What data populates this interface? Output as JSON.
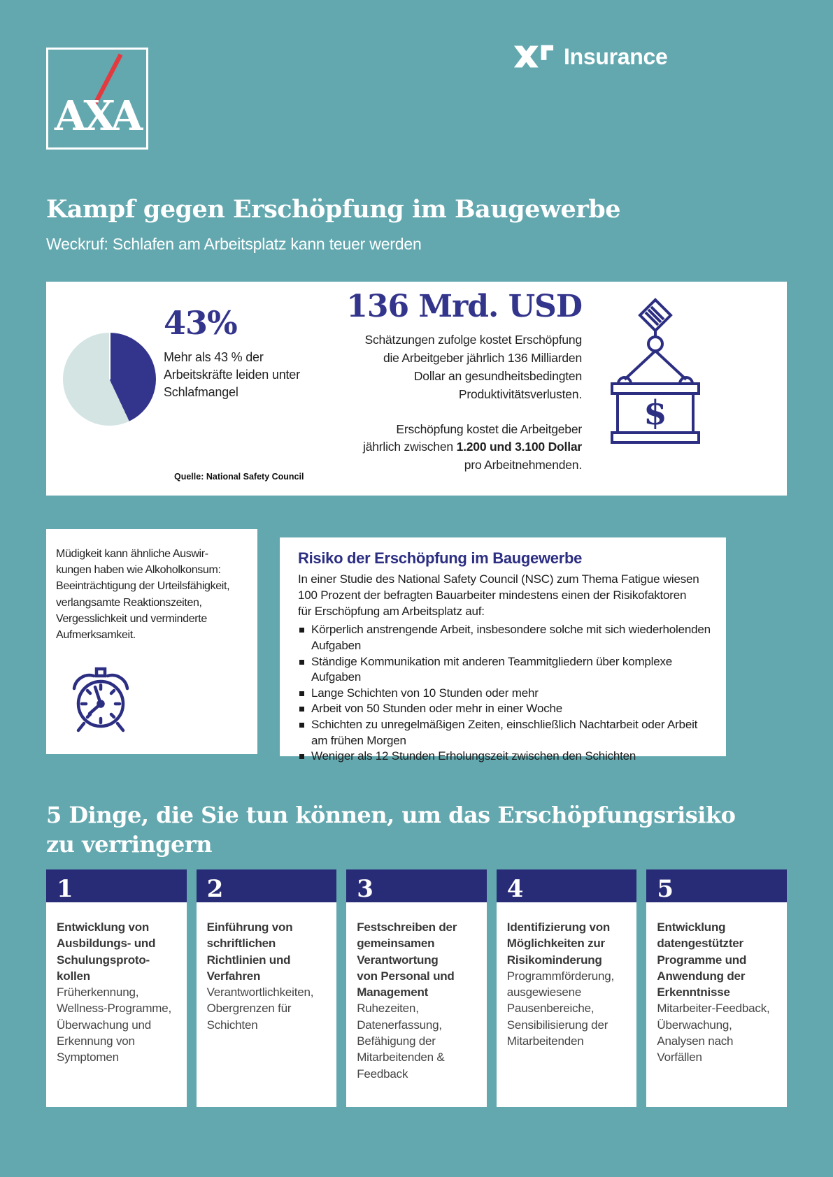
{
  "colors": {
    "background_teal": "#63a8af",
    "brand_navy": "#2c2e82",
    "header_bar_navy": "#282b76",
    "pie_dark": "#33348b",
    "pie_light": "#d3e4e3",
    "axa_red": "#e33a40",
    "card_bg": "#ffffff"
  },
  "brand": {
    "axa_label": "AXA",
    "xl_label": "Insurance"
  },
  "title": "Kampf gegen Erschöpfung im Baugewerbe",
  "subtitle": "Weckruf: Schlafen am Arbeitsplatz kann teuer werden",
  "stats_card": {
    "pie": {
      "type": "pie",
      "dark_percent": 43,
      "light_percent": 57
    },
    "stat43": {
      "value": "43%",
      "desc": "Mehr als 43 % der\nArbeitskräfte leiden unter\nSchlafmangel"
    },
    "source": "Quelle: National Safety Council",
    "stat136": {
      "value": "136 Mrd. USD",
      "desc": "Schätzungen zufolge kostet Erschöpfung\ndie Arbeitgeber jährlich 136 Milliarden\nDollar an gesundheitsbedingten\nProduktivitätsverlusten.",
      "cost_pre": "Erschöpfung kostet die Arbeitgeber\njährlich zwischen ",
      "cost_bold": "1.200 und 3.100 Dollar",
      "cost_post": "\npro Arbeitnehmenden."
    },
    "crane_dollar": "$"
  },
  "fatigue_card": {
    "text": "Müdigkeit kann ähnliche Auswir-\nkungen haben wie Alkoholkonsum:\nBeeinträchtigung der Urteilsfähigkeit,\nverlangsamte Reaktionszeiten,\nVergesslichkeit und verminderte\nAufmerksamkeit."
  },
  "risk_card": {
    "heading": "Risiko der Erschöpfung im Baugewerbe",
    "intro": "In einer Studie des National Safety Council (NSC) zum Thema Fatigue wiesen\n100 Prozent der befragten Bauarbeiter mindestens einen der Risikofaktoren\nfür Erschöpfung am Arbeitsplatz auf:",
    "bullets": [
      "Körperlich anstrengende Arbeit, insbesondere solche mit sich wiederholenden Aufgaben",
      "Ständige Kommunikation mit anderen Teammitgliedern über komplexe Aufgaben",
      "Lange Schichten von 10 Stunden oder mehr",
      "Arbeit von 50 Stunden oder mehr in einer Woche",
      "Schichten zu unregelmäßigen Zeiten, einschließlich Nachtarbeit oder Arbeit am frühen Morgen",
      "Weniger als 12 Stunden Erholungszeit zwischen den Schichten"
    ]
  },
  "actions": {
    "heading": "5 Dinge, die Sie tun können, um das Erschöpfungsrisiko\nzu verringern",
    "columns": [
      {
        "number": "1",
        "title": "Entwicklung von\nAusbildungs- und\nSchulungsproto-\nkollen",
        "body": "Früherkennung,\nWellness-Programme,\nÜberwachung und\nErkennung von\nSymptomen"
      },
      {
        "number": "2",
        "title": "Einführung von\nschriftlichen\nRichtlinien und\nVerfahren",
        "body": "Verantwortlichkeiten,\nObergrenzen für\nSchichten"
      },
      {
        "number": "3",
        "title": "Festschreiben der\ngemeinsamen\nVerantwortung\nvon Personal und\nManagement",
        "body": "Ruhezeiten,\nDatenerfassung,\nBefähigung der\nMitarbeitenden &\nFeedback"
      },
      {
        "number": "4",
        "title": "Identifizierung von\nMöglichkeiten zur\nRisikominderung",
        "body": "Programmförderung,\nausgewiesene\nPausenbereiche,\nSensibilisierung der\nMitarbeitenden"
      },
      {
        "number": "5",
        "title": "Entwicklung\ndatengestützter\nProgramme und\nAnwendung der\nErkenntnisse",
        "body": "Mitarbeiter-Feedback,\nÜberwachung,\nAnalysen nach\nVorfällen"
      }
    ]
  }
}
